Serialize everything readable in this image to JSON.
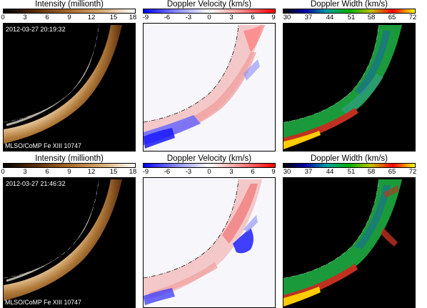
{
  "rows": [
    {
      "timestamp": "2012-03-27 20:19:32",
      "instrument_label": "MLSO/CoMP Fe XIII 10747",
      "panels": [
        {
          "title": "Intensity (millionth)",
          "ticks": [
            "0",
            "3",
            "6",
            "9",
            "12",
            "15",
            "18"
          ],
          "colormap": "intensity"
        },
        {
          "title": "Doppler Velocity (km/s)",
          "ticks": [
            "-9",
            "-6",
            "-3",
            "0",
            "3",
            "6",
            "9"
          ],
          "colormap": "velocity"
        },
        {
          "title": "Doppler Width (km/s)",
          "ticks": [
            "30",
            "37",
            "44",
            "51",
            "58",
            "65",
            "72"
          ],
          "colormap": "width"
        }
      ]
    },
    {
      "timestamp": "2012-03-27 21:46:32",
      "instrument_label": "MLSO/CoMP Fe XIII 10747",
      "panels": [
        {
          "title": "Intensity (millionth)",
          "ticks": [
            "0",
            "3",
            "6",
            "9",
            "12",
            "15",
            "18"
          ],
          "colormap": "intensity"
        },
        {
          "title": "Doppler Velocity (km/s)",
          "ticks": [
            "-9",
            "-6",
            "-3",
            "0",
            "3",
            "6",
            "9"
          ],
          "colormap": "velocity"
        },
        {
          "title": "Doppler Width (km/s)",
          "ticks": [
            "30",
            "37",
            "44",
            "51",
            "58",
            "65",
            "72"
          ],
          "colormap": "width"
        }
      ]
    }
  ],
  "colors": {
    "intensity": [
      "#000000",
      "#5a2e08",
      "#a86a2c",
      "#d9aa72",
      "#ffffff"
    ],
    "velocity": [
      "#0000ff",
      "#8a8aff",
      "#ffffff",
      "#ff8a8a",
      "#ff0000"
    ],
    "width": [
      "#000000",
      "#0000aa",
      "#00a0a0",
      "#00b000",
      "#c0c000",
      "#ff0000",
      "#ffff00"
    ]
  }
}
